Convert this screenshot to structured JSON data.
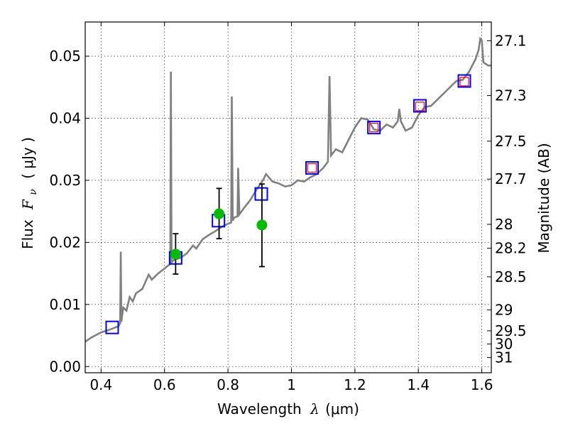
{
  "chart_data": {
    "type": "scatter",
    "xlabel": {
      "prefix": "Wavelength",
      "symbol": "λ",
      "unit": "(μm)"
    },
    "ylabel": {
      "prefix": "Flux",
      "symbol": "F",
      "subscript": "ν",
      "unit": "( μJy )"
    },
    "y2label": "Magnitude (AB)",
    "xlim": [
      0.35,
      1.63
    ],
    "ylim": [
      -0.001,
      0.0555
    ],
    "grid": true,
    "x_ticks": [
      {
        "value": 0.4,
        "label": "0.4"
      },
      {
        "value": 0.6,
        "label": "0.6"
      },
      {
        "value": 0.8,
        "label": "0.8"
      },
      {
        "value": 1.0,
        "label": "1"
      },
      {
        "value": 1.2,
        "label": "1.2"
      },
      {
        "value": 1.4,
        "label": "1.4"
      },
      {
        "value": 1.6,
        "label": "1.6"
      }
    ],
    "y_ticks": [
      {
        "value": 0.0,
        "label": "0.00"
      },
      {
        "value": 0.01,
        "label": "0.01"
      },
      {
        "value": 0.02,
        "label": "0.02"
      },
      {
        "value": 0.03,
        "label": "0.03"
      },
      {
        "value": 0.04,
        "label": "0.04"
      },
      {
        "value": 0.05,
        "label": "0.05"
      }
    ],
    "mag_ticks": [
      "27.1",
      "27.3",
      "27.5",
      "27.7",
      "28",
      "28.2",
      "28.5",
      "29",
      "29.5",
      "30",
      "31"
    ],
    "series": [
      {
        "name": "model spectrum",
        "kind": "line",
        "color": "#808080",
        "points": [
          [
            0.35,
            0.004
          ],
          [
            0.37,
            0.0047
          ],
          [
            0.4,
            0.0055
          ],
          [
            0.43,
            0.006
          ],
          [
            0.455,
            0.0065
          ],
          [
            0.46,
            0.007
          ],
          [
            0.462,
            0.0185
          ],
          [
            0.464,
            0.0072
          ],
          [
            0.47,
            0.0095
          ],
          [
            0.48,
            0.009
          ],
          [
            0.49,
            0.0112
          ],
          [
            0.5,
            0.0105
          ],
          [
            0.51,
            0.0118
          ],
          [
            0.53,
            0.0125
          ],
          [
            0.55,
            0.0148
          ],
          [
            0.56,
            0.014
          ],
          [
            0.58,
            0.015
          ],
          [
            0.6,
            0.0158
          ],
          [
            0.61,
            0.0162
          ],
          [
            0.618,
            0.0165
          ],
          [
            0.62,
            0.0475
          ],
          [
            0.622,
            0.0168
          ],
          [
            0.63,
            0.0172
          ],
          [
            0.65,
            0.0175
          ],
          [
            0.67,
            0.0182
          ],
          [
            0.69,
            0.0195
          ],
          [
            0.7,
            0.019
          ],
          [
            0.72,
            0.0205
          ],
          [
            0.74,
            0.0212
          ],
          [
            0.76,
            0.0218
          ],
          [
            0.78,
            0.0225
          ],
          [
            0.8,
            0.023
          ],
          [
            0.81,
            0.0232
          ],
          [
            0.812,
            0.0435
          ],
          [
            0.815,
            0.0235
          ],
          [
            0.82,
            0.024
          ],
          [
            0.83,
            0.0242
          ],
          [
            0.832,
            0.032
          ],
          [
            0.836,
            0.0245
          ],
          [
            0.85,
            0.0255
          ],
          [
            0.87,
            0.0268
          ],
          [
            0.89,
            0.0285
          ],
          [
            0.91,
            0.03
          ],
          [
            0.92,
            0.031
          ],
          [
            0.94,
            0.0298
          ],
          [
            0.96,
            0.0295
          ],
          [
            0.98,
            0.029
          ],
          [
            1.0,
            0.0292
          ],
          [
            1.02,
            0.03
          ],
          [
            1.04,
            0.0298
          ],
          [
            1.06,
            0.0305
          ],
          [
            1.08,
            0.031
          ],
          [
            1.1,
            0.032
          ],
          [
            1.115,
            0.033
          ],
          [
            1.12,
            0.0468
          ],
          [
            1.125,
            0.034
          ],
          [
            1.14,
            0.035
          ],
          [
            1.16,
            0.0345
          ],
          [
            1.18,
            0.0365
          ],
          [
            1.2,
            0.0385
          ],
          [
            1.22,
            0.04
          ],
          [
            1.24,
            0.0398
          ],
          [
            1.26,
            0.0382
          ],
          [
            1.28,
            0.038
          ],
          [
            1.3,
            0.039
          ],
          [
            1.32,
            0.0385
          ],
          [
            1.335,
            0.0395
          ],
          [
            1.34,
            0.0415
          ],
          [
            1.345,
            0.0395
          ],
          [
            1.36,
            0.038
          ],
          [
            1.38,
            0.0385
          ],
          [
            1.4,
            0.0405
          ],
          [
            1.42,
            0.0418
          ],
          [
            1.44,
            0.042
          ],
          [
            1.46,
            0.043
          ],
          [
            1.48,
            0.044
          ],
          [
            1.5,
            0.045
          ],
          [
            1.52,
            0.046
          ],
          [
            1.54,
            0.0462
          ],
          [
            1.56,
            0.0475
          ],
          [
            1.58,
            0.0495
          ],
          [
            1.59,
            0.051
          ],
          [
            1.595,
            0.0528
          ],
          [
            1.6,
            0.0525
          ],
          [
            1.605,
            0.049
          ],
          [
            1.62,
            0.0485
          ],
          [
            1.63,
            0.0485
          ]
        ]
      },
      {
        "name": "model photometry (blue squares)",
        "kind": "square",
        "color": "#0000ff",
        "points": [
          [
            0.435,
            0.0063
          ],
          [
            0.635,
            0.0175
          ],
          [
            0.77,
            0.0235
          ],
          [
            0.905,
            0.0278
          ],
          [
            1.065,
            0.032
          ],
          [
            1.26,
            0.0385
          ],
          [
            1.405,
            0.042
          ],
          [
            1.545,
            0.046
          ]
        ]
      },
      {
        "name": "model photometry (red squares)",
        "kind": "square-small",
        "color": "#ff0000",
        "points": [
          [
            1.065,
            0.032
          ],
          [
            1.26,
            0.0385
          ],
          [
            1.405,
            0.0419
          ],
          [
            1.545,
            0.0459
          ]
        ]
      },
      {
        "name": "observed fluxes",
        "kind": "errorbar",
        "color": "#00bb00",
        "points": [
          {
            "x": 0.635,
            "y": 0.0181,
            "lo": 0.0149,
            "hi": 0.0214
          },
          {
            "x": 0.772,
            "y": 0.0246,
            "lo": 0.0206,
            "hi": 0.0287
          },
          {
            "x": 0.907,
            "y": 0.0228,
            "lo": 0.0161,
            "hi": 0.0294
          }
        ]
      }
    ]
  }
}
